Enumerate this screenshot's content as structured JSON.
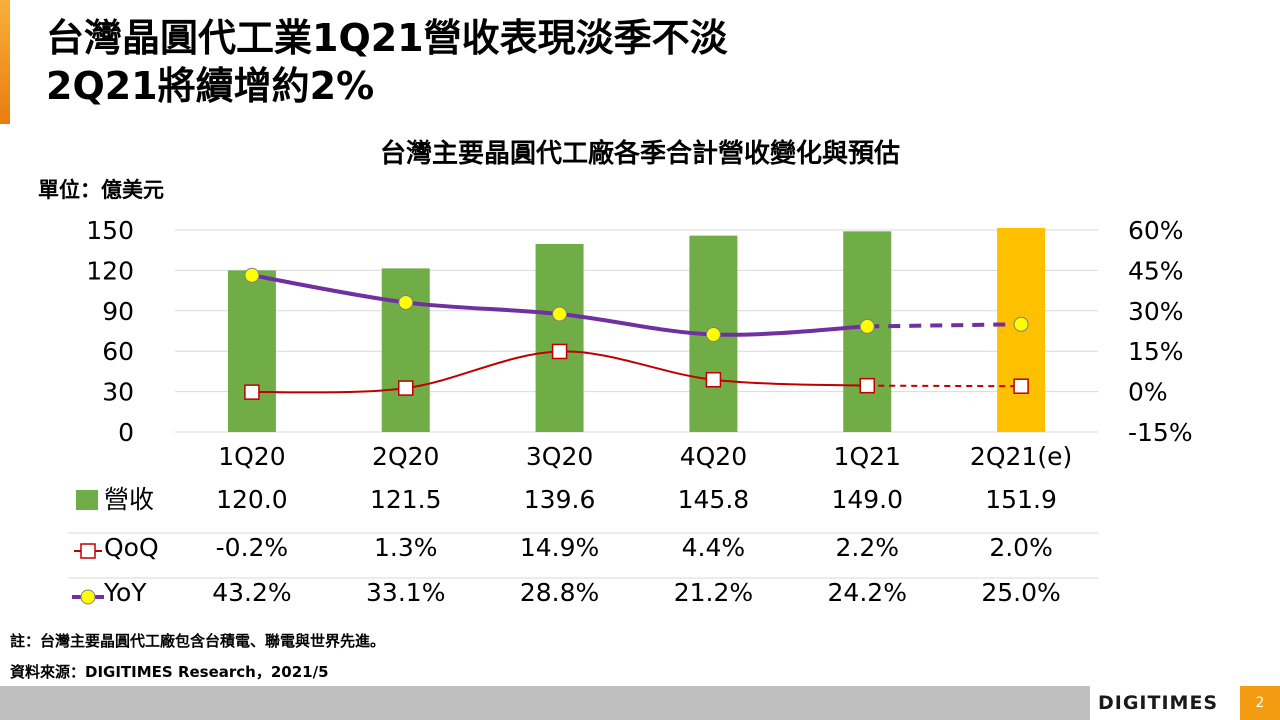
{
  "slide": {
    "title_line1": "台灣晶圓代工業1Q21營收表現淡季不淡",
    "title_line2": "2Q21將續增約2%",
    "note": "註：台灣主要晶圓代工廠包含台積電、聯電與世界先進。",
    "source": "資料來源：DIGITIMES Research，2021/5",
    "brand": "DIGITIMES",
    "page_number": "2"
  },
  "colors": {
    "revenue_bar": "#70ad47",
    "forecast_bar": "#ffc000",
    "qoq_line": "#c00000",
    "yoy_line": "#7030a0",
    "yoy_marker": "#ffff00",
    "accent": "#f39c12"
  },
  "chart_data": {
    "type": "bar",
    "title": "台灣主要晶圓代工廠各季合計營收變化與預估",
    "unit_label": "單位：億美元",
    "categories": [
      "1Q20",
      "2Q20",
      "3Q20",
      "4Q20",
      "1Q21",
      "2Q21(e)"
    ],
    "forecast_categories": [
      "2Q21(e)"
    ],
    "y_left": {
      "ticks": [
        "150",
        "120",
        "90",
        "60",
        "30",
        "0"
      ],
      "min": 0,
      "max": 150
    },
    "y_right": {
      "ticks": [
        "60%",
        "45%",
        "30%",
        "15%",
        "0%",
        "-15%"
      ],
      "min": -15,
      "max": 60
    },
    "grid": true,
    "series": [
      {
        "name": "營收",
        "kind": "bar",
        "axis": "left",
        "values": [
          120.0,
          121.5,
          139.6,
          145.8,
          149.0,
          151.9
        ],
        "labels": [
          "120.0",
          "121.5",
          "139.6",
          "145.8",
          "149.0",
          "151.9"
        ]
      },
      {
        "name": "QoQ",
        "kind": "line",
        "axis": "right",
        "marker": "square",
        "values": [
          -0.2,
          1.3,
          14.9,
          4.4,
          2.2,
          2.0
        ],
        "labels": [
          "-0.2%",
          "1.3%",
          "14.9%",
          "4.4%",
          "2.2%",
          "2.0%"
        ]
      },
      {
        "name": "YoY",
        "kind": "line",
        "axis": "right",
        "marker": "circle",
        "values": [
          43.2,
          33.1,
          28.8,
          21.2,
          24.2,
          25.0
        ],
        "labels": [
          "43.2%",
          "33.1%",
          "28.8%",
          "21.2%",
          "24.2%",
          "25.0%"
        ]
      }
    ]
  }
}
